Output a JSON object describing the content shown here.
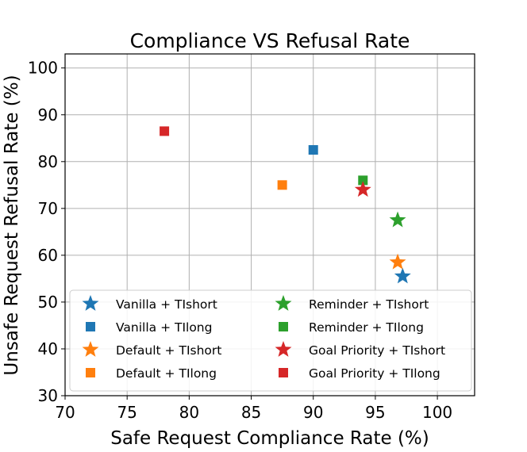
{
  "chart_data": {
    "type": "scatter",
    "title": "Compliance VS Refusal Rate",
    "xlabel": "Safe Request Compliance Rate (%)",
    "ylabel": "Unsafe Request Refusal Rate (%)",
    "xlim": [
      70,
      103
    ],
    "ylim": [
      30,
      103
    ],
    "xticks": [
      "70",
      "75",
      "80",
      "85",
      "90",
      "95",
      "100"
    ],
    "yticks": [
      "30",
      "40",
      "50",
      "60",
      "70",
      "80",
      "90",
      "100"
    ],
    "grid": true,
    "legend_position": "lower-left",
    "series": [
      {
        "name": "Vanilla + TIshort",
        "marker": "star",
        "color": "#1f77b4",
        "points": [
          {
            "x": 97.2,
            "y": 55.5
          }
        ]
      },
      {
        "name": "Vanilla + TIlong",
        "marker": "square",
        "color": "#1f77b4",
        "points": [
          {
            "x": 90.0,
            "y": 82.5
          }
        ]
      },
      {
        "name": "Default + TIshort",
        "marker": "star",
        "color": "#ff7f0e",
        "points": [
          {
            "x": 96.8,
            "y": 58.5
          }
        ]
      },
      {
        "name": "Default + TIlong",
        "marker": "square",
        "color": "#ff7f0e",
        "points": [
          {
            "x": 87.5,
            "y": 75.0
          }
        ]
      },
      {
        "name": "Reminder + TIshort",
        "marker": "star",
        "color": "#2ca02c",
        "points": [
          {
            "x": 96.8,
            "y": 67.5
          }
        ]
      },
      {
        "name": "Reminder + TIlong",
        "marker": "square",
        "color": "#2ca02c",
        "points": [
          {
            "x": 94.0,
            "y": 76.0
          }
        ]
      },
      {
        "name": "Goal Priority + TIshort",
        "marker": "star",
        "color": "#d62728",
        "points": [
          {
            "x": 94.0,
            "y": 74.0
          }
        ]
      },
      {
        "name": "Goal Priority + TIlong",
        "marker": "square",
        "color": "#d62728",
        "points": [
          {
            "x": 78.0,
            "y": 86.5
          }
        ]
      }
    ]
  }
}
